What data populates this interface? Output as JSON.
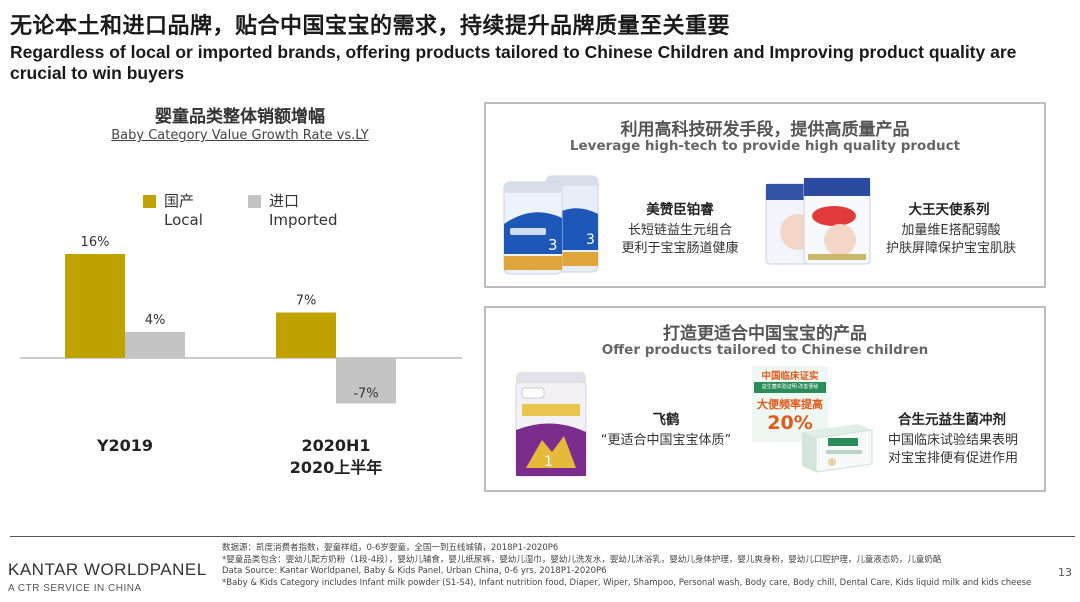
{
  "header": {
    "title_zh": "无论本土和进口品牌，贴合中国宝宝的需求，持续提升品牌质量至关重要",
    "title_en": "Regardless of local or imported brands, offering products tailored to Chinese Children and Improving product quality are crucial to win buyers"
  },
  "chart_section": {
    "title_zh": "婴童品类整体销额增幅",
    "title_en": "Baby Category Value Growth Rate vs.LY"
  },
  "legend": [
    {
      "label_zh": "国产",
      "label_en": "Local",
      "color": "#c0a200"
    },
    {
      "label_zh": "进口",
      "label_en": "Imported",
      "color": "#c4c4c4"
    }
  ],
  "chart_data": {
    "type": "bar",
    "title": "婴童品类整体销额增幅",
    "subtitle": "Baby Category Value Growth Rate vs.LY",
    "categories": [
      "Y2019",
      "2020H1"
    ],
    "category_sublabels": [
      "",
      "2020上半年"
    ],
    "series": [
      {
        "name": "国产 Local",
        "color": "#c0a200",
        "values": [
          16,
          7
        ],
        "labels": [
          "16%",
          "7%"
        ]
      },
      {
        "name": "进口 Imported",
        "color": "#c4c4c4",
        "values": [
          4,
          -7
        ],
        "labels": [
          "4%",
          "-7%"
        ]
      }
    ],
    "ylim": [
      -8,
      18
    ],
    "grid": false,
    "legend_position": "top"
  },
  "panel_top": {
    "title_zh": "利用高科技研发手段，提供高质量产品",
    "title_en": "Leverage high-tech to provide high quality product",
    "products": [
      {
        "name": "美赞臣铂睿",
        "desc": [
          "长短链益生元组合",
          "更利于宝宝肠道健康"
        ]
      },
      {
        "name": "大王天使系列",
        "desc": [
          "加量维E搭配弱酸",
          "护肤屏障保护宝宝肌肤"
        ]
      }
    ]
  },
  "panel_bottom": {
    "title_zh": "打造更适合中国宝宝的产品",
    "title_en": "Offer products tailored to Chinese children",
    "products": [
      {
        "name": "飞鹤",
        "desc": [
          "“更适合中国宝宝体质”"
        ]
      },
      {
        "name": "合生元益生菌冲剂",
        "desc": [
          "中国临床试验结果表明",
          "对宝宝排便有促进作用"
        ]
      }
    ],
    "badge": {
      "line1": "中国临床证实",
      "line2": "益生菌实验证明 改善便秘",
      "line3": "大便频率提高",
      "value": "20%"
    }
  },
  "footer": {
    "brand": "KANTAR WORLDPANEL",
    "brand_sub": "A CTR SERVICE IN CHINA",
    "notes": [
      "数据源：凯度消费者指数，婴童样组，0-6岁婴童，全国一到五线城镇，2018P1-2020P6",
      "*婴童品类包含：婴幼儿配方奶粉（1段-4段），婴幼儿辅食，婴儿纸尿裤，婴幼儿湿巾，婴幼儿洗发水，婴幼儿沐浴乳，婴幼儿身体护理，婴儿爽身粉，婴幼儿口腔护理，儿童液态奶，儿童奶酪",
      "Data Source: Kantar Worldpanel, Baby & Kids Panel, Urban China, 0-6 yrs, 2018P1-2020P6",
      "*Baby & Kids Category includes Infant milk powder (S1-S4), Infant nutrition food, Diaper, Wiper, Shampoo, Personal wash, Body care, Body chill, Dental Care, Kids liquid milk and kids cheese"
    ],
    "page_number": "13"
  }
}
